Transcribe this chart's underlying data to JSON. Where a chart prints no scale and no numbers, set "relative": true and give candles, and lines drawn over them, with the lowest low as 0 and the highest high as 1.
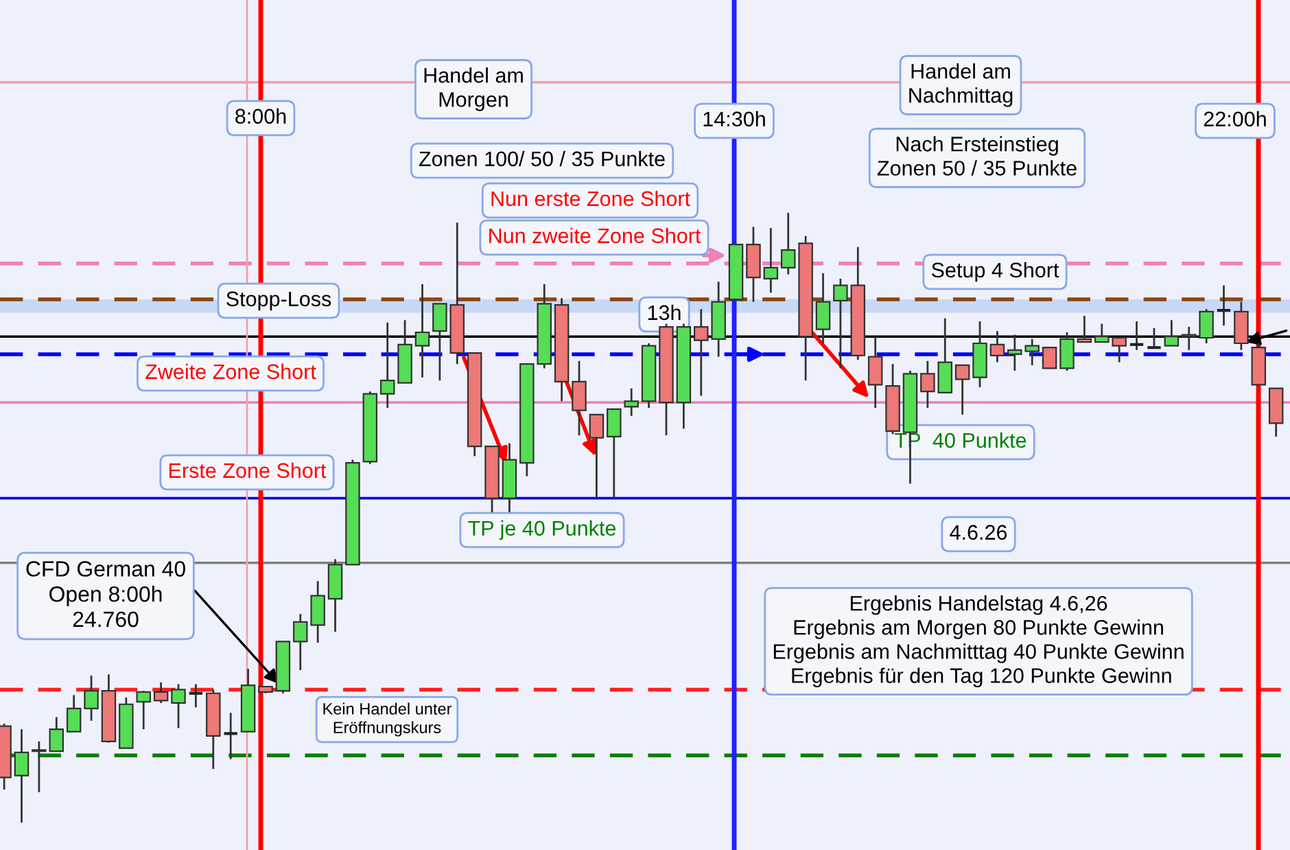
{
  "chart_data": {
    "type": "candlestick",
    "relative": true,
    "categories": [
      null,
      null,
      null,
      null,
      null,
      null,
      null,
      null,
      null,
      null,
      null,
      null,
      null,
      null,
      null,
      null,
      null,
      null,
      null,
      null,
      null,
      null,
      null,
      null,
      null,
      null,
      null,
      null,
      null,
      null,
      null,
      null,
      null,
      null,
      null,
      null,
      null,
      null,
      null,
      null,
      null,
      null,
      null,
      null,
      null,
      null,
      null,
      null,
      null,
      null,
      null,
      null,
      null,
      null,
      null,
      null,
      null,
      null,
      null,
      null,
      null,
      null,
      null,
      null,
      null,
      null,
      null,
      null,
      null,
      null,
      null,
      null,
      null,
      null
    ],
    "ohlc": [
      [
        0.158,
        0.162,
        0.054,
        0.074
      ],
      [
        0.077,
        0.153,
        0.0,
        0.115
      ],
      [
        0.117,
        0.133,
        0.05,
        0.119
      ],
      [
        0.117,
        0.173,
        0.117,
        0.153
      ],
      [
        0.149,
        0.209,
        0.149,
        0.187
      ],
      [
        0.187,
        0.241,
        0.167,
        0.216
      ],
      [
        0.216,
        0.243,
        0.131,
        0.133
      ],
      [
        0.122,
        0.205,
        0.122,
        0.194
      ],
      [
        0.198,
        0.216,
        0.153,
        0.214
      ],
      [
        0.214,
        0.23,
        0.196,
        0.2
      ],
      [
        0.196,
        0.227,
        0.155,
        0.218
      ],
      [
        0.212,
        0.227,
        0.189,
        0.212
      ],
      [
        0.212,
        0.218,
        0.088,
        0.142
      ],
      [
        0.146,
        0.18,
        0.104,
        0.146
      ],
      [
        0.149,
        0.252,
        0.149,
        0.225
      ],
      [
        0.223,
        0.223,
        0.212,
        0.214
      ],
      [
        0.216,
        0.297,
        0.212,
        0.297
      ],
      [
        0.297,
        0.342,
        0.25,
        0.329
      ],
      [
        0.324,
        0.396,
        0.295,
        0.372
      ],
      [
        0.367,
        0.432,
        0.313,
        0.423
      ],
      [
        0.423,
        0.595,
        0.423,
        0.59
      ],
      [
        0.592,
        0.707,
        0.588,
        0.703
      ],
      [
        0.703,
        0.82,
        0.68,
        0.725
      ],
      [
        0.721,
        0.824,
        0.721,
        0.784
      ],
      [
        0.782,
        0.883,
        0.73,
        0.804
      ],
      [
        0.806,
        0.851,
        0.725,
        0.851
      ],
      [
        0.849,
        0.984,
        0.752,
        0.77
      ],
      [
        0.77,
        0.77,
        0.601,
        0.617
      ],
      [
        0.617,
        0.617,
        0.509,
        0.532
      ],
      [
        0.532,
        0.622,
        0.509,
        0.595
      ],
      [
        0.59,
        0.752,
        0.568,
        0.752
      ],
      [
        0.752,
        0.883,
        0.745,
        0.851
      ],
      [
        0.849,
        0.86,
        0.691,
        0.723
      ],
      [
        0.723,
        0.757,
        0.635,
        0.676
      ],
      [
        0.669,
        0.669,
        0.532,
        0.631
      ],
      [
        0.633,
        0.678,
        0.532,
        0.678
      ],
      [
        0.682,
        0.712,
        0.667,
        0.691
      ],
      [
        0.691,
        0.786,
        0.68,
        0.782
      ],
      [
        0.813,
        0.818,
        0.635,
        0.689
      ],
      [
        0.689,
        0.818,
        0.646,
        0.813
      ],
      [
        0.813,
        0.842,
        0.7,
        0.791
      ],
      [
        0.793,
        0.887,
        0.764,
        0.854
      ],
      [
        0.858,
        0.948,
        0.858,
        0.948
      ],
      [
        0.948,
        0.977,
        0.854,
        0.894
      ],
      [
        0.892,
        0.975,
        0.869,
        0.91
      ],
      [
        0.91,
        1.0,
        0.899,
        0.939
      ],
      [
        0.95,
        0.962,
        0.725,
        0.797
      ],
      [
        0.809,
        0.901,
        0.786,
        0.854
      ],
      [
        0.856,
        0.892,
        0.745,
        0.881
      ],
      [
        0.881,
        0.944,
        0.759,
        0.766
      ],
      [
        0.764,
        0.797,
        0.68,
        0.718
      ],
      [
        0.716,
        0.752,
        0.637,
        0.642
      ],
      [
        0.64,
        0.741,
        0.556,
        0.736
      ],
      [
        0.736,
        0.757,
        0.68,
        0.707
      ],
      [
        0.705,
        0.827,
        0.705,
        0.755
      ],
      [
        0.75,
        0.75,
        0.669,
        0.727
      ],
      [
        0.73,
        0.822,
        0.714,
        0.786
      ],
      [
        0.784,
        0.806,
        0.755,
        0.766
      ],
      [
        0.768,
        0.8,
        0.741,
        0.775
      ],
      [
        0.773,
        0.793,
        0.75,
        0.782
      ],
      [
        0.779,
        0.779,
        0.745,
        0.745
      ],
      [
        0.745,
        0.804,
        0.741,
        0.793
      ],
      [
        0.793,
        0.831,
        0.788,
        0.788
      ],
      [
        0.788,
        0.818,
        0.788,
        0.797
      ],
      [
        0.795,
        0.795,
        0.755,
        0.782
      ],
      [
        0.784,
        0.822,
        0.775,
        0.784
      ],
      [
        0.779,
        0.811,
        0.777,
        0.779
      ],
      [
        0.782,
        0.824,
        0.782,
        0.797
      ],
      [
        0.797,
        0.813,
        0.775,
        0.8
      ],
      [
        0.795,
        0.842,
        0.786,
        0.838
      ],
      [
        0.84,
        0.881,
        0.815,
        0.84
      ],
      [
        0.838,
        0.854,
        0.775,
        0.786
      ],
      [
        0.779,
        0.786,
        0.718,
        0.718
      ],
      [
        0.712,
        0.712,
        0.633,
        0.655
      ]
    ],
    "ref_lines": [
      {
        "axis": "y",
        "value": 1.214,
        "color": "#f4a0a8",
        "line_style": "solid"
      },
      {
        "axis": "y",
        "value": 0.917,
        "color": "#f080b8",
        "line_style": "dashed"
      },
      {
        "axis": "y",
        "value": 0.858,
        "color": "#8b4513",
        "line_style": "dashed"
      },
      {
        "axis": "y",
        "value": 0.797,
        "color": "#000000",
        "line_style": "solid"
      },
      {
        "axis": "y",
        "value": 0.768,
        "color": "#0000ff",
        "line_style": "dashed"
      },
      {
        "axis": "y",
        "value": 0.689,
        "color": "#f080b8",
        "line_style": "solid"
      },
      {
        "axis": "y",
        "value": 0.532,
        "color": "#0000ee",
        "line_style": "solid"
      },
      {
        "axis": "y",
        "value": 0.426,
        "color": "#808080",
        "line_style": "solid"
      },
      {
        "axis": "y",
        "value": 0.218,
        "color": "#ff2020",
        "line_style": "dashed"
      },
      {
        "axis": "y",
        "value": 0.11,
        "color": "#008000",
        "line_style": "dashed"
      }
    ],
    "bands": [
      {
        "axis": "y",
        "from": 0.836,
        "to": 0.858,
        "color": "#c8d8f8"
      }
    ],
    "annotations": [
      "Handel am\nMorgen",
      "Zonen 100/ 50 / 35 Punkte",
      "Handel am\nNachmittag",
      "Nach Ersteinstieg\nZonen 50 / 35 Punkte",
      "Nun zweite Zone Short",
      "Stopp-Loss",
      "Setup 4 Short",
      "13h",
      "Nun erste Zone Short",
      "Zweite Zone Short",
      "TP  40 Punkte",
      "Erste Zone Short",
      "TP je 40 Punkte",
      "4.6.26",
      "CFD German 40\nOpen 8:00h\n24.760",
      "Ergebnis Handelstag 4.6,26\nErgebnis am Morgen 80 Punkte Gewinn\nErgebnis am Nachmitttag 40 Punkte Gewinn\n Ergebnis für den Tag 120 Punkte Gewinn",
      "Kein Handel unter\nEröffnungskurs",
      "8:00h",
      "14:30h",
      "22:00h"
    ]
  }
}
